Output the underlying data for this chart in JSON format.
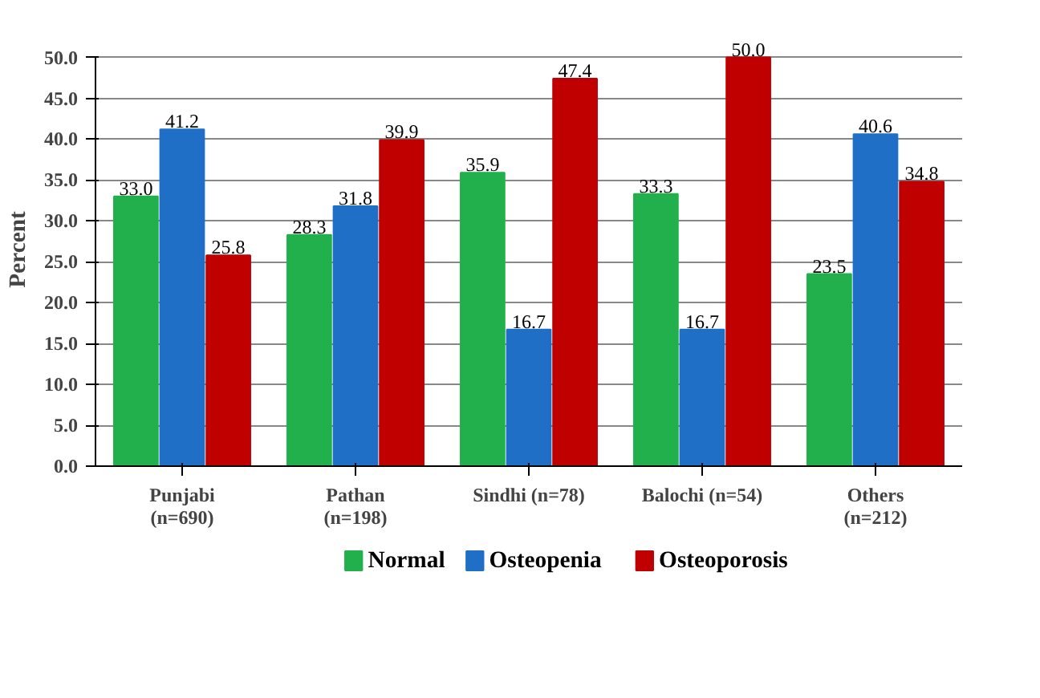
{
  "chart_data": {
    "type": "bar",
    "ylabel": "Percent",
    "categories": [
      "Punjabi\n(n=690)",
      "Pathan\n(n=198)",
      "Sindhi (n=78)",
      "Balochi (n=54)",
      "Others\n(n=212)"
    ],
    "series": [
      {
        "name": "Normal",
        "color": "#21b04b",
        "values": [
          33.0,
          28.3,
          35.9,
          33.3,
          23.5
        ],
        "value_labels": [
          "33.0",
          "28.3",
          "35.9",
          "33.3",
          "23.5"
        ]
      },
      {
        "name": "Osteopenia",
        "color": "#1f6fc6",
        "values": [
          41.2,
          31.8,
          16.7,
          16.7,
          40.6
        ],
        "value_labels": [
          "41.2",
          "31.8",
          "16.7",
          "16.7",
          "40.6"
        ]
      },
      {
        "name": "Osteoporosis",
        "color": "#c00000",
        "values": [
          25.8,
          39.9,
          47.4,
          50.0,
          34.8
        ],
        "value_labels": [
          "25.8",
          "39.9",
          "47.4",
          "50.0",
          "34.8"
        ]
      }
    ],
    "ylim": [
      0,
      50
    ],
    "yticks": [
      {
        "value": 0,
        "label": "0.0"
      },
      {
        "value": 5,
        "label": "5.0"
      },
      {
        "value": 10,
        "label": "10.0"
      },
      {
        "value": 15,
        "label": "15.0"
      },
      {
        "value": 20,
        "label": "20.0"
      },
      {
        "value": 25,
        "label": "25.0"
      },
      {
        "value": 30,
        "label": "30.0"
      },
      {
        "value": 35,
        "label": "35.0"
      },
      {
        "value": 40,
        "label": "40.0"
      },
      {
        "value": 45,
        "label": "45.0"
      },
      {
        "value": 50,
        "label": "50.0"
      }
    ],
    "grid": "y",
    "legend": "bottom"
  }
}
